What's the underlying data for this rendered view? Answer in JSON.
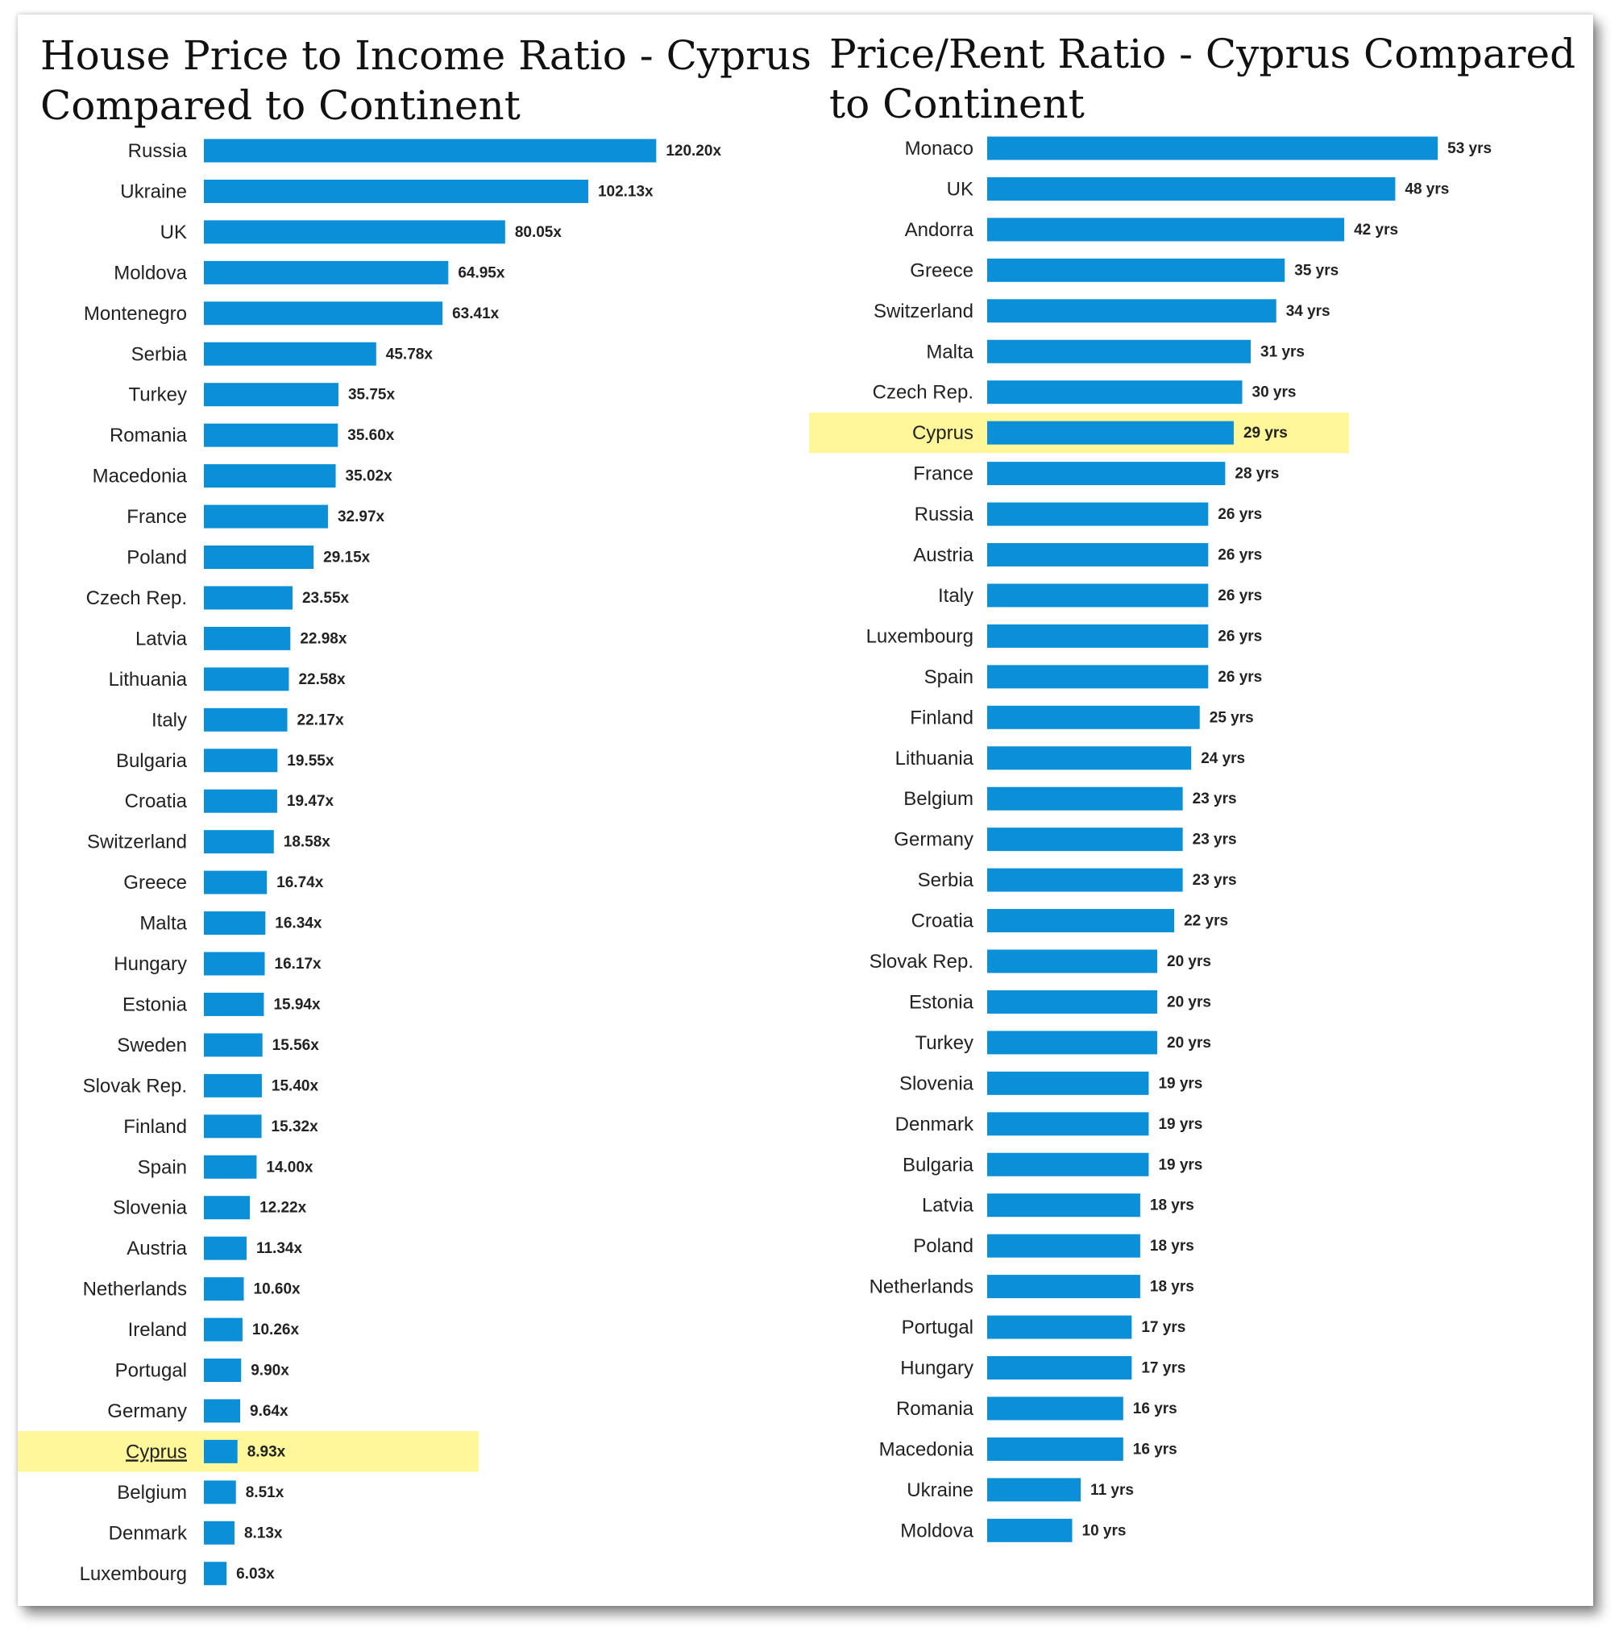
{
  "highlight_color": "#fff79a",
  "bar_color": "#0b8fd7",
  "chart_data": [
    {
      "type": "bar",
      "orientation": "horizontal",
      "title": "House Price to Income Ratio - Cyprus Compared to Continent",
      "highlight": "Cyprus",
      "value_suffix": "x",
      "xlim": [
        0,
        130
      ],
      "categories": [
        "Russia",
        "Ukraine",
        "UK",
        "Moldova",
        "Montenegro",
        "Serbia",
        "Turkey",
        "Romania",
        "Macedonia",
        "France",
        "Poland",
        "Czech Rep.",
        "Latvia",
        "Lithuania",
        "Italy",
        "Bulgaria",
        "Croatia",
        "Switzerland",
        "Greece",
        "Malta",
        "Hungary",
        "Estonia",
        "Sweden",
        "Slovak Rep.",
        "Finland",
        "Spain",
        "Slovenia",
        "Austria",
        "Netherlands",
        "Ireland",
        "Portugal",
        "Germany",
        "Cyprus",
        "Belgium",
        "Denmark",
        "Luxembourg"
      ],
      "values": [
        120.2,
        102.13,
        80.05,
        64.95,
        63.41,
        45.78,
        35.75,
        35.6,
        35.02,
        32.97,
        29.15,
        23.55,
        22.98,
        22.58,
        22.17,
        19.55,
        19.47,
        18.58,
        16.74,
        16.34,
        16.17,
        15.94,
        15.56,
        15.4,
        15.32,
        14.0,
        12.22,
        11.34,
        10.6,
        10.26,
        9.9,
        9.64,
        8.93,
        8.51,
        8.13,
        6.03
      ],
      "value_labels": [
        "120.20x",
        "102.13x",
        "80.05x",
        "64.95x",
        "63.41x",
        "45.78x",
        "35.75x",
        "35.60x",
        "35.02x",
        "32.97x",
        "29.15x",
        "23.55x",
        "22.98x",
        "22.58x",
        "22.17x",
        "19.55x",
        "19.47x",
        "18.58x",
        "16.74x",
        "16.34x",
        "16.17x",
        "15.94x",
        "15.56x",
        "15.40x",
        "15.32x",
        "14.00x",
        "12.22x",
        "11.34x",
        "10.60x",
        "10.26x",
        "9.90x",
        "9.64x",
        "8.93x",
        "8.51x",
        "8.13x",
        "6.03x"
      ]
    },
    {
      "type": "bar",
      "orientation": "horizontal",
      "title": "Price/Rent Ratio - Cyprus Compared to Continent",
      "highlight": "Cyprus",
      "value_suffix": " yrs",
      "xlim": [
        0,
        60
      ],
      "categories": [
        "Monaco",
        "UK",
        "Andorra",
        "Greece",
        "Switzerland",
        "Malta",
        "Czech Rep.",
        "Cyprus",
        "France",
        "Russia",
        "Austria",
        "Italy",
        "Luxembourg",
        "Spain",
        "Finland",
        "Lithuania",
        "Belgium",
        "Germany",
        "Serbia",
        "Croatia",
        "Slovak Rep.",
        "Estonia",
        "Turkey",
        "Slovenia",
        "Denmark",
        "Bulgaria",
        "Latvia",
        "Poland",
        "Netherlands",
        "Portugal",
        "Hungary",
        "Romania",
        "Macedonia",
        "Ukraine",
        "Moldova"
      ],
      "values": [
        53,
        48,
        42,
        35,
        34,
        31,
        30,
        29,
        28,
        26,
        26,
        26,
        26,
        26,
        25,
        24,
        23,
        23,
        23,
        22,
        20,
        20,
        20,
        19,
        19,
        19,
        18,
        18,
        18,
        17,
        17,
        16,
        16,
        11,
        10
      ],
      "value_labels": [
        "53 yrs",
        "48 yrs",
        "42 yrs",
        "35 yrs",
        "34 yrs",
        "31 yrs",
        "30 yrs",
        "29 yrs",
        "28 yrs",
        "26 yrs",
        "26 yrs",
        "26 yrs",
        "26 yrs",
        "26 yrs",
        "25 yrs",
        "24 yrs",
        "23 yrs",
        "23 yrs",
        "23 yrs",
        "22 yrs",
        "20 yrs",
        "20 yrs",
        "20 yrs",
        "19 yrs",
        "19 yrs",
        "19 yrs",
        "18 yrs",
        "18 yrs",
        "18 yrs",
        "17 yrs",
        "17 yrs",
        "16 yrs",
        "16 yrs",
        "11 yrs",
        "10 yrs"
      ]
    }
  ]
}
